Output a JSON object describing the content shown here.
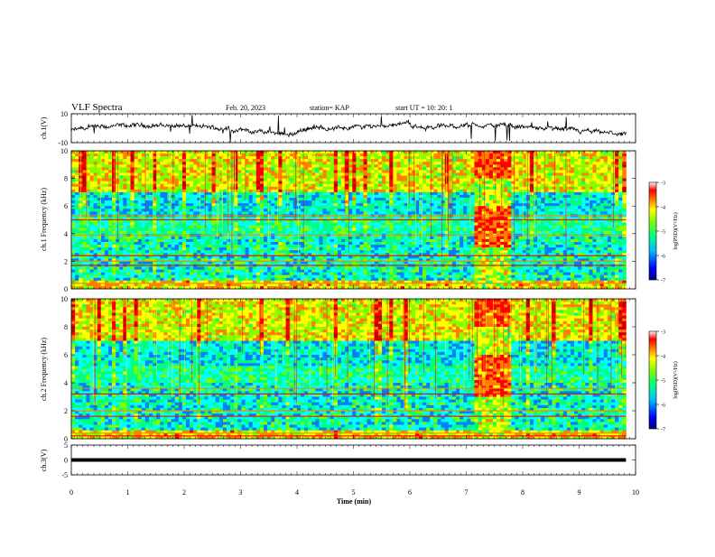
{
  "header": {
    "title": "VLF Spectra",
    "date": "Feb. 20, 2023",
    "station": "station= KAP",
    "start_time": "start  UT =  10: 20: 1"
  },
  "chart_data": [
    {
      "type": "line",
      "panel": "ch1-waveform",
      "ylabel": "ch.1(V)",
      "ylim": [
        -10,
        10
      ],
      "ytick_labels": [
        "10",
        "-10"
      ],
      "x_range_min": [
        0,
        9.83
      ]
    },
    {
      "type": "heatmap",
      "panel": "ch1-spectrogram",
      "ylabel": "ch.1  Frequency (kHz)",
      "ylim": [
        0,
        10
      ],
      "ytick_labels": [
        "10",
        "8",
        "6",
        "4",
        "2",
        "0"
      ],
      "x_range_min": [
        0,
        9.83
      ],
      "colorbar": {
        "label": "log(PSD)(V²/Hz)",
        "range": [
          -7,
          -3
        ],
        "tick_labels": [
          "-3",
          "-4",
          "-5",
          "-6",
          "-7"
        ]
      }
    },
    {
      "type": "heatmap",
      "panel": "ch2-spectrogram",
      "ylabel": "ch.2  Frequency (kHz)",
      "ylim": [
        0,
        10
      ],
      "ytick_labels": [
        "10",
        "8",
        "6",
        "4",
        "2",
        "0"
      ],
      "x_range_min": [
        0,
        9.83
      ],
      "colorbar": {
        "label": "log(PSD)(V²/Hz)",
        "range": [
          -7,
          -3
        ],
        "tick_labels": [
          "-3",
          "-4",
          "-5",
          "-6",
          "-7"
        ]
      }
    },
    {
      "type": "line",
      "panel": "ch3-waveform",
      "ylabel": "ch.3(V)",
      "ylim": [
        -5,
        5
      ],
      "ytick_labels": [
        "5",
        "0",
        "-5"
      ],
      "x_range_min": [
        0,
        9.83
      ]
    }
  ],
  "xaxis": {
    "label": "Time  (min)",
    "range": [
      0,
      10
    ],
    "tick_labels": [
      "0",
      "1",
      "2",
      "3",
      "4",
      "5",
      "6",
      "7",
      "8",
      "9",
      "10"
    ]
  },
  "colors": {
    "colormap": [
      "#00007f",
      "#0000ff",
      "#0080ff",
      "#00ffff",
      "#00ff80",
      "#80ff00",
      "#ffff00",
      "#ff8000",
      "#ff0000",
      "#c00000",
      "#ffffff"
    ],
    "axis": "#000000"
  }
}
